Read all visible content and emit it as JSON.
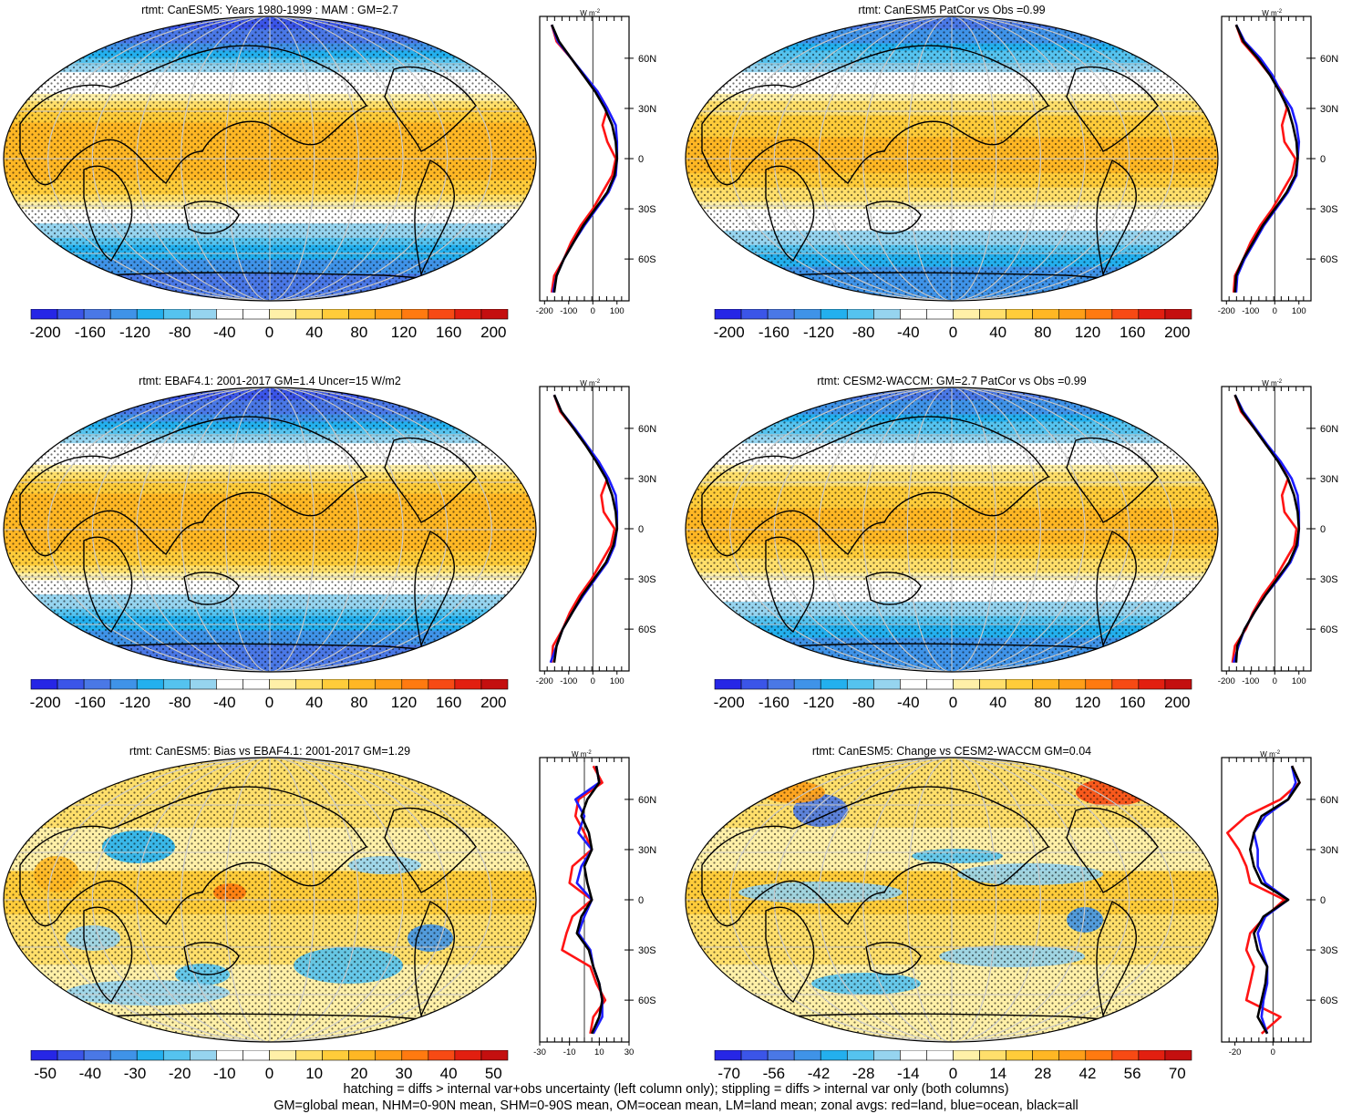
{
  "palette": [
    "#2626e6",
    "#3b55e8",
    "#4a78e6",
    "#3f93e8",
    "#23b0ee",
    "#55c3ef",
    "#96d4ef",
    "#ffffff",
    "#ffffff",
    "#fff0a8",
    "#ffdf6b",
    "#ffcc3a",
    "#ffb724",
    "#ff9e18",
    "#ff7a10",
    "#f74a14",
    "#e21f10",
    "#c40f0f"
  ],
  "colors": {
    "land_line": "#ff1414",
    "ocean_line": "#1c1cff",
    "all_line": "#000000",
    "grid": "#c8c8c8"
  },
  "chart_data": [
    {
      "type": "heatmap",
      "title": "rtmt: CanESM5: Years 1980-1999 : MAM : GM=2.7",
      "colorbar_ticks": [
        -200,
        -160,
        -120,
        -80,
        -40,
        0,
        40,
        80,
        120,
        160,
        200
      ],
      "zonal": {
        "units": "W m",
        "units_sup": "-2",
        "xticks": [
          -200,
          -100,
          0,
          100
        ],
        "xlim": [
          -220,
          150
        ],
        "lat_ticks": [
          "60N",
          "30N",
          "0",
          "30S",
          "60S"
        ],
        "lat": [
          80,
          70,
          60,
          50,
          40,
          30,
          20,
          10,
          0,
          -10,
          -20,
          -30,
          -40,
          -50,
          -60,
          -70,
          -80
        ],
        "all": [
          -170,
          -140,
          -90,
          -40,
          10,
          50,
          80,
          95,
          100,
          90,
          60,
          10,
          -40,
          -80,
          -120,
          -150,
          -160
        ],
        "land": [
          -170,
          -150,
          -90,
          -40,
          20,
          60,
          40,
          60,
          95,
          80,
          40,
          0,
          -50,
          -90,
          -120,
          -160,
          -170
        ],
        "ocean": [
          -170,
          -145,
          -90,
          -35,
          20,
          60,
          95,
          100,
          100,
          95,
          65,
          15,
          -35,
          -80,
          -120,
          -150,
          -165
        ]
      }
    },
    {
      "type": "heatmap",
      "title": "rtmt: CanESM5 PatCor vs Obs =0.99",
      "colorbar_ticks": [
        -200,
        -160,
        -120,
        -80,
        -40,
        0,
        40,
        80,
        120,
        160,
        200
      ],
      "zonal": {
        "units": "W m",
        "units_sup": "-2",
        "xticks": [
          -200,
          -100,
          0,
          100
        ],
        "xlim": [
          -220,
          150
        ],
        "lat_ticks": [
          "60N",
          "30N",
          "0",
          "30S",
          "60S"
        ],
        "lat": [
          80,
          70,
          60,
          50,
          40,
          30,
          20,
          10,
          0,
          -10,
          -20,
          -30,
          -40,
          -50,
          -60,
          -70,
          -80
        ],
        "all": [
          -160,
          -130,
          -70,
          -20,
          20,
          55,
          75,
          90,
          95,
          85,
          50,
          0,
          -50,
          -90,
          -130,
          -160,
          -165
        ],
        "land": [
          -160,
          -135,
          -75,
          -20,
          30,
          50,
          30,
          40,
          85,
          70,
          30,
          -10,
          -60,
          -100,
          -130,
          -165,
          -170
        ],
        "ocean": [
          -160,
          -125,
          -60,
          -10,
          25,
          70,
          90,
          100,
          95,
          90,
          55,
          5,
          -45,
          -85,
          -125,
          -155,
          -160
        ]
      }
    },
    {
      "type": "heatmap",
      "title": "rtmt: EBAF4.1: 2001-2017 GM=1.4 Uncer=15 W/m2",
      "colorbar_ticks": [
        -200,
        -160,
        -120,
        -80,
        -40,
        0,
        40,
        80,
        120,
        160,
        200
      ],
      "zonal": {
        "units": "W m",
        "units_sup": "-2",
        "xticks": [
          -200,
          -100,
          0,
          100
        ],
        "xlim": [
          -220,
          150
        ],
        "lat_ticks": [
          "60N",
          "30N",
          "0",
          "30S",
          "60S"
        ],
        "lat": [
          80,
          70,
          60,
          50,
          40,
          30,
          20,
          10,
          0,
          -10,
          -20,
          -30,
          -40,
          -50,
          -60,
          -70,
          -80
        ],
        "all": [
          -160,
          -130,
          -80,
          -30,
          15,
          55,
          80,
          95,
          100,
          85,
          55,
          5,
          -45,
          -85,
          -125,
          -150,
          -160
        ],
        "land": [
          -160,
          -135,
          -80,
          -30,
          25,
          60,
          35,
          45,
          90,
          75,
          35,
          -5,
          -55,
          -95,
          -125,
          -165,
          -170
        ],
        "ocean": [
          -160,
          -130,
          -75,
          -25,
          25,
          65,
          95,
          100,
          100,
          90,
          60,
          10,
          -40,
          -85,
          -125,
          -150,
          -175
        ]
      }
    },
    {
      "type": "heatmap",
      "title": "rtmt: CESM2-WACCM: GM=2.7 PatCor vs Obs =0.99",
      "colorbar_ticks": [
        -200,
        -160,
        -120,
        -80,
        -40,
        0,
        40,
        80,
        120,
        160,
        200
      ],
      "zonal": {
        "units": "W m",
        "units_sup": "-2",
        "xticks": [
          -200,
          -100,
          0,
          100
        ],
        "xlim": [
          -220,
          150
        ],
        "lat_ticks": [
          "60N",
          "30N",
          "0",
          "30S",
          "60S"
        ],
        "lat": [
          80,
          70,
          60,
          50,
          40,
          30,
          20,
          10,
          0,
          -10,
          -20,
          -30,
          -40,
          -50,
          -60,
          -70,
          -80
        ],
        "all": [
          -165,
          -135,
          -85,
          -35,
          15,
          55,
          80,
          95,
          100,
          90,
          60,
          10,
          -40,
          -85,
          -125,
          -155,
          -160
        ],
        "land": [
          -165,
          -140,
          -85,
          -35,
          20,
          55,
          30,
          40,
          90,
          80,
          40,
          0,
          -50,
          -90,
          -120,
          -165,
          -175
        ],
        "ocean": [
          -165,
          -130,
          -80,
          -30,
          25,
          70,
          95,
          100,
          100,
          95,
          65,
          15,
          -40,
          -85,
          -125,
          -150,
          -170
        ]
      }
    },
    {
      "type": "heatmap",
      "title": "rtmt: CanESM5: Bias vs EBAF4.1: 2001-2017 GM=1.29",
      "colorbar_ticks": [
        -50,
        -40,
        -30,
        -20,
        -10,
        0,
        10,
        20,
        30,
        40,
        50
      ],
      "zonal": {
        "units": "W m",
        "units_sup": "-2",
        "xticks": [
          -30,
          -10,
          10,
          30
        ],
        "xlim": [
          -30,
          30
        ],
        "lat_ticks": [
          "60N",
          "30N",
          "0",
          "30S",
          "60S"
        ],
        "lat": [
          80,
          70,
          60,
          50,
          40,
          30,
          20,
          10,
          0,
          -10,
          -20,
          -30,
          -40,
          -50,
          -60,
          -70,
          -80
        ],
        "all": [
          8,
          10,
          2,
          -2,
          3,
          5,
          0,
          2,
          5,
          -2,
          -5,
          3,
          6,
          10,
          12,
          10,
          5
        ],
        "land": [
          6,
          12,
          -4,
          -6,
          0,
          5,
          -8,
          -10,
          5,
          -8,
          -12,
          -15,
          4,
          8,
          14,
          6,
          4
        ],
        "ocean": [
          8,
          10,
          -6,
          0,
          -4,
          5,
          -2,
          -5,
          5,
          0,
          -4,
          4,
          6,
          10,
          12,
          12,
          6
        ]
      }
    },
    {
      "type": "heatmap",
      "title": "rtmt: CanESM5: Change vs CESM2-WACCM GM=0.04",
      "colorbar_ticks": [
        -70,
        -56,
        -42,
        -28,
        -14,
        0,
        14,
        28,
        42,
        56,
        70
      ],
      "zonal": {
        "units": "W m",
        "units_sup": "-2",
        "xticks": [
          -20,
          0
        ],
        "xlim": [
          -27,
          20
        ],
        "lat_ticks": [
          "60N",
          "30N",
          "0",
          "30S",
          "60S"
        ],
        "lat": [
          80,
          70,
          60,
          50,
          40,
          30,
          20,
          10,
          0,
          -10,
          -20,
          -30,
          -40,
          -50,
          -60,
          -70,
          -80
        ],
        "all": [
          10,
          14,
          8,
          -6,
          -10,
          -12,
          -10,
          -6,
          8,
          -5,
          -10,
          -8,
          -3,
          -4,
          -6,
          -8,
          -3
        ],
        "land": [
          10,
          14,
          4,
          -14,
          -24,
          -18,
          -14,
          -12,
          6,
          -4,
          -12,
          -14,
          -10,
          -12,
          -14,
          4,
          -6
        ],
        "ocean": [
          10,
          12,
          8,
          -4,
          -10,
          -8,
          -8,
          -4,
          8,
          -4,
          -8,
          -6,
          -3,
          -3,
          -5,
          -6,
          -3
        ]
      }
    }
  ],
  "footer": {
    "line1": "hatching = diffs > internal var+obs uncertainty (left column only); stippling = diffs > internal var only (both columns)",
    "line2": "GM=global mean, NHM=0-90N mean, SHM=0-90S mean, OM=ocean mean, LM=land mean; zonal avgs: red=land, blue=ocean, black=all"
  }
}
